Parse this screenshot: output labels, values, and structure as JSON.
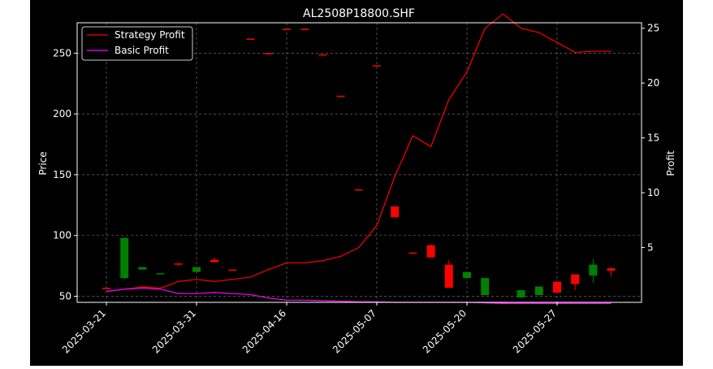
{
  "chart_data": {
    "type": "candlestick",
    "title": "AL2508P18800.SHF",
    "ylabel_left": "Price",
    "ylabel_right": "Profit",
    "grid": true,
    "legend_position": "top-left",
    "x_ticks": [
      "2025-03-21",
      "2025-03-31",
      "2025-04-16",
      "2025-05-07",
      "2025-05-20",
      "2025-05-27"
    ],
    "y_left_ticks": [
      50,
      100,
      150,
      200,
      250
    ],
    "y_right_ticks": [
      5,
      10,
      15,
      20,
      25
    ],
    "ylim_left": [
      45,
      275
    ],
    "ylim_right": [
      0,
      25.5
    ],
    "colors": {
      "up": "#ff0000",
      "down": "#008000",
      "strategy": "#ff0000",
      "basic": "#ff00ff",
      "grid": "#7f7f7f"
    },
    "candles": [
      {
        "open": 57,
        "high": 57,
        "low": 57,
        "close": 57
      },
      {
        "open": 98,
        "high": 98,
        "low": 64,
        "close": 65
      },
      {
        "open": 74,
        "high": 74,
        "low": 72,
        "close": 72
      },
      {
        "open": 69,
        "high": 69,
        "low": 68,
        "close": 68
      },
      {
        "open": 76,
        "high": 78,
        "low": 75,
        "close": 77
      },
      {
        "open": 74,
        "high": 74,
        "low": 70,
        "close": 70
      },
      {
        "open": 78,
        "high": 82,
        "low": 78,
        "close": 80
      },
      {
        "open": 72,
        "high": 72,
        "low": 72,
        "close": 72
      },
      {
        "open": 262,
        "high": 262,
        "low": 262,
        "close": 262
      },
      {
        "open": 250,
        "high": 250,
        "low": 250,
        "close": 250
      },
      {
        "open": 270,
        "high": 270,
        "low": 270,
        "close": 270
      },
      {
        "open": 270,
        "high": 270,
        "low": 270,
        "close": 270
      },
      {
        "open": 249,
        "high": 249,
        "low": 249,
        "close": 249
      },
      {
        "open": 215,
        "high": 215,
        "low": 215,
        "close": 215
      },
      {
        "open": 137,
        "high": 138,
        "low": 137,
        "close": 138
      },
      {
        "open": 240,
        "high": 240,
        "low": 240,
        "close": 240
      },
      {
        "open": 115,
        "high": 124,
        "low": 115,
        "close": 124
      },
      {
        "open": 86,
        "high": 86,
        "low": 86,
        "close": 86
      },
      {
        "open": 82,
        "high": 93,
        "low": 82,
        "close": 92
      },
      {
        "open": 57,
        "high": 80,
        "low": 57,
        "close": 76
      },
      {
        "open": 70,
        "high": 70,
        "low": 65,
        "close": 65
      },
      {
        "open": 65,
        "high": 65,
        "low": 51,
        "close": 51
      },
      {
        "open": 45,
        "high": 45,
        "low": 45,
        "close": 45
      },
      {
        "open": 55,
        "high": 55,
        "low": 49,
        "close": 49
      },
      {
        "open": 58,
        "high": 58,
        "low": 51,
        "close": 51
      },
      {
        "open": 53,
        "high": 62,
        "low": 53,
        "close": 62
      },
      {
        "open": 60,
        "high": 68,
        "low": 55,
        "close": 68
      },
      {
        "open": 76,
        "high": 81,
        "low": 61,
        "close": 67
      },
      {
        "open": 71,
        "high": 74,
        "low": 66,
        "close": 73
      }
    ],
    "series": [
      {
        "name": "Strategy Profit",
        "values": [
          1.0,
          1.2,
          1.4,
          1.3,
          1.9,
          2.1,
          1.9,
          2.1,
          2.3,
          3.0,
          3.6,
          3.6,
          3.8,
          4.2,
          5.0,
          7.0,
          11.5,
          15.2,
          14.2,
          18.5,
          21.0,
          25.0,
          26.3,
          25.0,
          24.6,
          23.7,
          22.8,
          22.9,
          22.9
        ]
      },
      {
        "name": "Basic Profit",
        "values": [
          1.0,
          1.2,
          1.3,
          1.2,
          0.8,
          0.8,
          0.9,
          0.8,
          0.7,
          0.4,
          0.2,
          0.2,
          0.15,
          0.1,
          0.05,
          0.05,
          0.0,
          0.0,
          0.0,
          0.0,
          0.0,
          -0.05,
          -0.1,
          -0.1,
          -0.1,
          -0.1,
          -0.1,
          -0.1,
          -0.1
        ]
      }
    ]
  }
}
